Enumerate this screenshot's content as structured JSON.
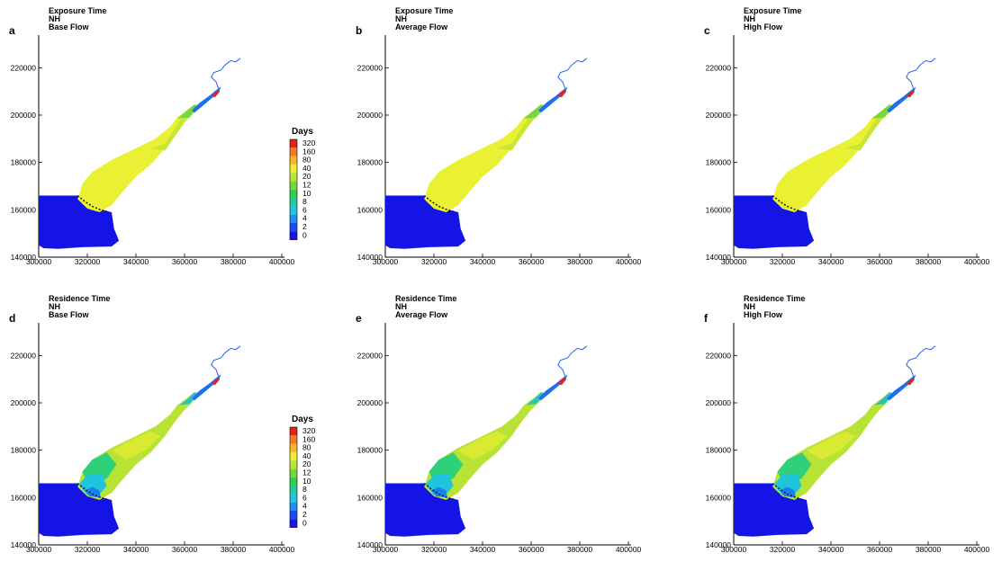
{
  "panels": [
    {
      "label": "a",
      "title": [
        "Exposure Time",
        "NH",
        "Base Flow"
      ],
      "variant": "exposure",
      "flow": "base",
      "legend": true
    },
    {
      "label": "b",
      "title": [
        "Exposure Time",
        "NH",
        "Average Flow"
      ],
      "variant": "exposure",
      "flow": "average",
      "legend": false
    },
    {
      "label": "c",
      "title": [
        "Exposure Time",
        "NH",
        "High Flow"
      ],
      "variant": "exposure",
      "flow": "high",
      "legend": false
    },
    {
      "label": "d",
      "title": [
        "Residence Time",
        "NH",
        "Base Flow"
      ],
      "variant": "residence",
      "flow": "base",
      "legend": true
    },
    {
      "label": "e",
      "title": [
        "Residence Time",
        "NH",
        "Average Flow"
      ],
      "variant": "residence",
      "flow": "average",
      "legend": false
    },
    {
      "label": "f",
      "title": [
        "Residence Time",
        "NH",
        "High Flow"
      ],
      "variant": "residence",
      "flow": "high",
      "legend": false
    }
  ],
  "legend": {
    "title": "Days",
    "levels": [
      "320",
      "160",
      "80",
      "40",
      "20",
      "12",
      "10",
      "8",
      "6",
      "4",
      "2",
      "0"
    ],
    "colors": [
      "#e8201c",
      "#f07c1e",
      "#f5b62a",
      "#f2ec2c",
      "#b9e532",
      "#72d93c",
      "#2fd04a",
      "#22cc9a",
      "#20c6dc",
      "#1e8ef0",
      "#1d4cf5",
      "#1818e6"
    ]
  },
  "chart_data": {
    "type": "heatmap",
    "x_ticks": [
      "300000",
      "320000",
      "340000",
      "360000",
      "380000",
      "400000"
    ],
    "y_ticks": [
      "140000",
      "160000",
      "180000",
      "200000",
      "220000"
    ],
    "xlim": [
      300000,
      400000
    ],
    "ylim": [
      140000,
      230000
    ],
    "colorbar_title": "Days",
    "colorbar_levels": [
      320,
      160,
      80,
      40,
      20,
      12,
      10,
      8,
      6,
      4,
      2,
      0
    ]
  }
}
